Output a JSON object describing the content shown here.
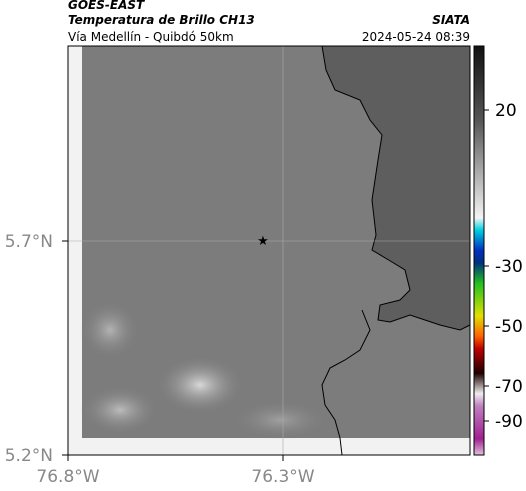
{
  "header": {
    "source": "GOES-EAST",
    "title": "Temperatura de Brillo CH13",
    "subtitle": "Vía Medellín - Quibdó 50km",
    "agency": "SIATA",
    "timestamp": "2024-05-24 08:39"
  },
  "map": {
    "lat_ticks": [
      "5.7°N",
      "5.2°N"
    ],
    "lon_ticks": [
      "76.8°W",
      "76.3°W"
    ]
  },
  "colorbar": {
    "ticks": [
      20,
      -30,
      -50,
      -70,
      -90
    ]
  }
}
